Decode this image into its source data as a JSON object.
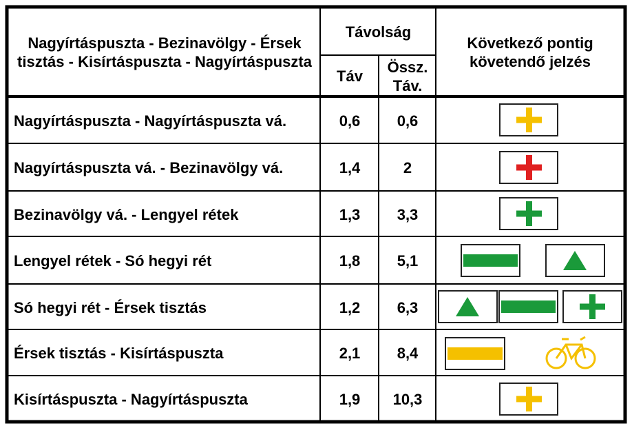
{
  "table": {
    "header": {
      "route": "Nagyírtáspuszta - Bezinavölgy - Érsek tisztás - Kisírtáspuszta - Nagyírtáspuszta",
      "distance": "Távolság",
      "dist": "Táv",
      "total": "Össz. Táv.",
      "sign": "Következő pontig követendő jelzés"
    },
    "rows": [
      [
        "Nagyírtáspuszta - Nagyírtáspuszta vá.",
        "0,6",
        "0,6"
      ],
      [
        "Nagyírtáspuszta vá. - Bezinavölgy vá.",
        "1,4",
        "2"
      ],
      [
        "Bezinavölgy vá. - Lengyel rétek",
        "1,3",
        "3,3"
      ],
      [
        "Lengyel rétek - Só hegyi rét",
        "1,8",
        "5,1"
      ],
      [
        "Só hegyi rét - Érsek tisztás",
        "1,2",
        "6,3"
      ],
      [
        "Érsek tisztás - Kisírtáspuszta",
        "2,1",
        "8,4"
      ],
      [
        "Kisírtáspuszta - Nagyírtáspuszta",
        "1,9",
        "10,3"
      ]
    ]
  }
}
